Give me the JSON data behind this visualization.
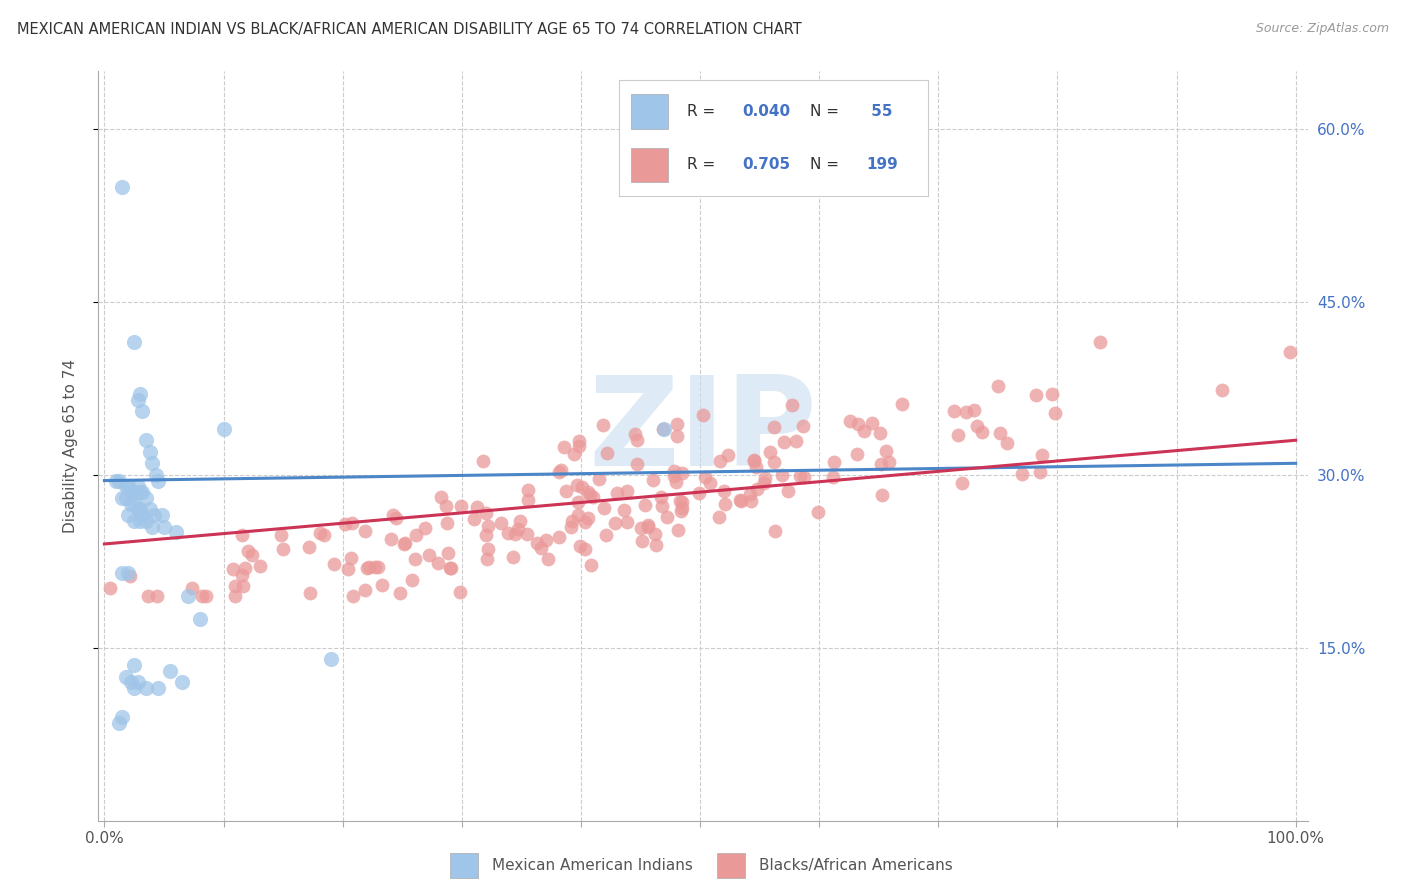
{
  "title": "MEXICAN AMERICAN INDIAN VS BLACK/AFRICAN AMERICAN DISABILITY AGE 65 TO 74 CORRELATION CHART",
  "source": "Source: ZipAtlas.com",
  "ylabel": "Disability Age 65 to 74",
  "xlim": [
    -0.005,
    1.01
  ],
  "ylim": [
    0.0,
    0.65
  ],
  "xticks": [
    0.0,
    0.1,
    0.2,
    0.3,
    0.4,
    0.5,
    0.6,
    0.7,
    0.8,
    0.9,
    1.0
  ],
  "xtick_labels_show": [
    "0.0%",
    "",
    "",
    "",
    "",
    "",
    "",
    "",
    "",
    "",
    "100.0%"
  ],
  "ytick_vals": [
    0.15,
    0.3,
    0.45,
    0.6
  ],
  "ytick_labels": [
    "15.0%",
    "30.0%",
    "45.0%",
    "60.0%"
  ],
  "color_blue": "#9fc5e8",
  "color_pink": "#ea9999",
  "color_blue_line": "#4a86c8",
  "color_pink_line": "#cc3355",
  "color_blue_text": "#4472c4",
  "watermark_color": "#c9dff2",
  "blue_trend_x": [
    0.0,
    1.0
  ],
  "blue_trend_y": [
    0.295,
    0.31
  ],
  "pink_trend_x": [
    0.0,
    1.0
  ],
  "pink_trend_y": [
    0.24,
    0.33
  ],
  "blue_scatter_x": [
    0.015,
    0.025,
    0.028,
    0.03,
    0.032,
    0.035,
    0.038,
    0.04,
    0.043,
    0.045,
    0.01,
    0.012,
    0.018,
    0.02,
    0.022,
    0.025,
    0.028,
    0.03,
    0.032,
    0.035,
    0.015,
    0.018,
    0.022,
    0.025,
    0.028,
    0.03,
    0.032,
    0.038,
    0.042,
    0.048,
    0.02,
    0.025,
    0.03,
    0.035,
    0.04,
    0.05,
    0.06,
    0.07,
    0.08,
    0.1,
    0.015,
    0.02,
    0.025,
    0.19,
    0.47,
    0.055,
    0.065,
    0.028,
    0.022,
    0.018,
    0.012,
    0.015,
    0.025,
    0.035,
    0.045
  ],
  "blue_scatter_y": [
    0.55,
    0.415,
    0.365,
    0.37,
    0.355,
    0.33,
    0.32,
    0.31,
    0.3,
    0.295,
    0.295,
    0.295,
    0.29,
    0.29,
    0.285,
    0.285,
    0.29,
    0.285,
    0.285,
    0.28,
    0.28,
    0.28,
    0.275,
    0.275,
    0.27,
    0.27,
    0.265,
    0.27,
    0.265,
    0.265,
    0.265,
    0.26,
    0.26,
    0.26,
    0.255,
    0.255,
    0.25,
    0.195,
    0.175,
    0.34,
    0.215,
    0.215,
    0.135,
    0.14,
    0.34,
    0.13,
    0.12,
    0.12,
    0.12,
    0.125,
    0.085,
    0.09,
    0.115,
    0.115,
    0.115
  ]
}
